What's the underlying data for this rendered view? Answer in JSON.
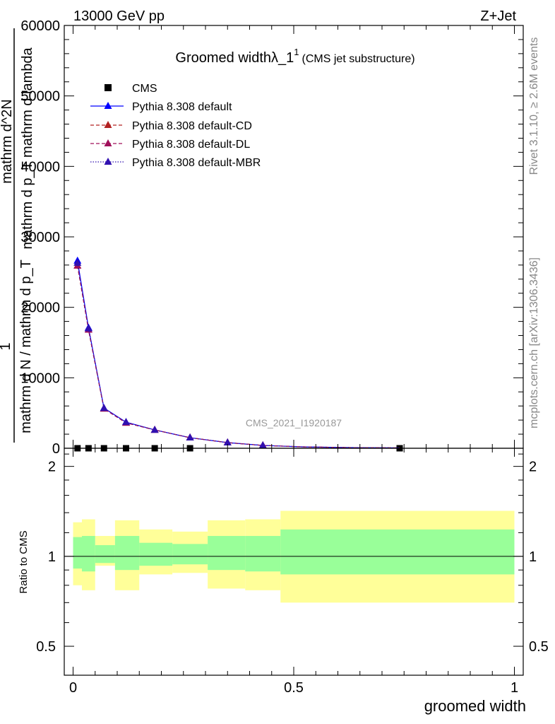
{
  "header": {
    "left": "13000 GeV pp",
    "right": "Z+Jet"
  },
  "side_text": {
    "rivet": "Rivet 3.1.10, ≥ 2.6M events",
    "mcplots": "mcplots.cern.ch [arXiv:1306.3436]"
  },
  "watermark": "CMS_2021_I1920187",
  "colors": {
    "cms": "#000000",
    "default": "#0000ff",
    "default_cd": "#b22222",
    "default_dl": "#a0105a",
    "default_mbr": "#3010b0",
    "band_outer": "#ffff99",
    "band_inner": "#99ff99"
  },
  "chart_data": [
    {
      "type": "line",
      "panel": "main",
      "title": "Groomed widthλ_1",
      "title_sup": "1",
      "title_suffix": "(CMS jet substructure)",
      "ylabel_lines": [
        "1",
        "mathrm d N / mathrm d p_T",
        "mathrm d^2N",
        "mathrm d p_T mathrm d lambda"
      ],
      "xlim": [
        -0.02,
        1.02
      ],
      "ylim": [
        0,
        60000
      ],
      "yticks": [
        0,
        10000,
        20000,
        30000,
        40000,
        50000,
        60000
      ],
      "ytick_labels": [
        "0",
        "10000",
        "20000",
        "30000",
        "40000",
        "50000",
        "60000"
      ],
      "x": [
        0.01,
        0.035,
        0.07,
        0.12,
        0.185,
        0.265,
        0.35,
        0.43,
        0.52,
        0.62,
        0.74
      ],
      "legend": [
        "CMS",
        "Pythia 8.308 default",
        "Pythia 8.308 default-CD",
        "Pythia 8.308 default-DL",
        "Pythia 8.308 default-MBR"
      ],
      "series": [
        {
          "name": "CMS",
          "style": "marker-square",
          "x": [
            0.01,
            0.035,
            0.07,
            0.12,
            0.185,
            0.265,
            0.74
          ],
          "values": [
            0,
            0,
            0,
            0,
            0,
            0,
            0
          ]
        },
        {
          "name": "Pythia 8.308 default",
          "style": "solid",
          "values": [
            26600,
            17100,
            5700,
            3700,
            2600,
            1500,
            800,
            400,
            200,
            100,
            50
          ]
        },
        {
          "name": "Pythia 8.308 default-CD",
          "style": "dashed",
          "values": [
            25900,
            16800,
            5600,
            3600,
            2600,
            1500,
            800,
            400,
            200,
            100,
            50
          ]
        },
        {
          "name": "Pythia 8.308 default-DL",
          "style": "dashed",
          "values": [
            25900,
            16800,
            5600,
            3600,
            2600,
            1500,
            800,
            400,
            200,
            100,
            50
          ]
        },
        {
          "name": "Pythia 8.308 default-MBR",
          "style": "dotted",
          "values": [
            26300,
            17000,
            5700,
            3700,
            2600,
            1500,
            800,
            400,
            200,
            100,
            50
          ]
        }
      ]
    },
    {
      "type": "area",
      "panel": "ratio",
      "ylabel": "Ratio to CMS",
      "xlabel": "groomed width",
      "xlim": [
        -0.02,
        1.02
      ],
      "ylim": [
        0.4,
        2.3
      ],
      "log_y": true,
      "yticks": [
        0.5,
        1,
        2
      ],
      "ytick_labels": [
        "0.5",
        "1",
        "2"
      ],
      "xticks": [
        0,
        0.5,
        1
      ],
      "xtick_labels": [
        "0",
        "0.5",
        "1"
      ],
      "bins": [
        {
          "x0": 0.0,
          "x1": 0.02,
          "outer": [
            0.8,
            1.3
          ],
          "inner": [
            0.91,
            1.16
          ]
        },
        {
          "x0": 0.02,
          "x1": 0.05,
          "outer": [
            0.77,
            1.33
          ],
          "inner": [
            0.89,
            1.17
          ]
        },
        {
          "x0": 0.05,
          "x1": 0.095,
          "outer": [
            0.93,
            1.17
          ],
          "inner": [
            0.95,
            1.09
          ]
        },
        {
          "x0": 0.095,
          "x1": 0.15,
          "outer": [
            0.77,
            1.32
          ],
          "inner": [
            0.9,
            1.17
          ]
        },
        {
          "x0": 0.15,
          "x1": 0.225,
          "outer": [
            0.87,
            1.23
          ],
          "inner": [
            0.93,
            1.11
          ]
        },
        {
          "x0": 0.225,
          "x1": 0.305,
          "outer": [
            0.88,
            1.21
          ],
          "inner": [
            0.94,
            1.1
          ]
        },
        {
          "x0": 0.305,
          "x1": 0.39,
          "outer": [
            0.78,
            1.32
          ],
          "inner": [
            0.9,
            1.17
          ]
        },
        {
          "x0": 0.39,
          "x1": 0.47,
          "outer": [
            0.77,
            1.33
          ],
          "inner": [
            0.89,
            1.17
          ]
        },
        {
          "x0": 0.47,
          "x1": 1.0,
          "outer": [
            0.7,
            1.42
          ],
          "inner": [
            0.87,
            1.23
          ]
        }
      ],
      "reference": 1.0
    }
  ]
}
